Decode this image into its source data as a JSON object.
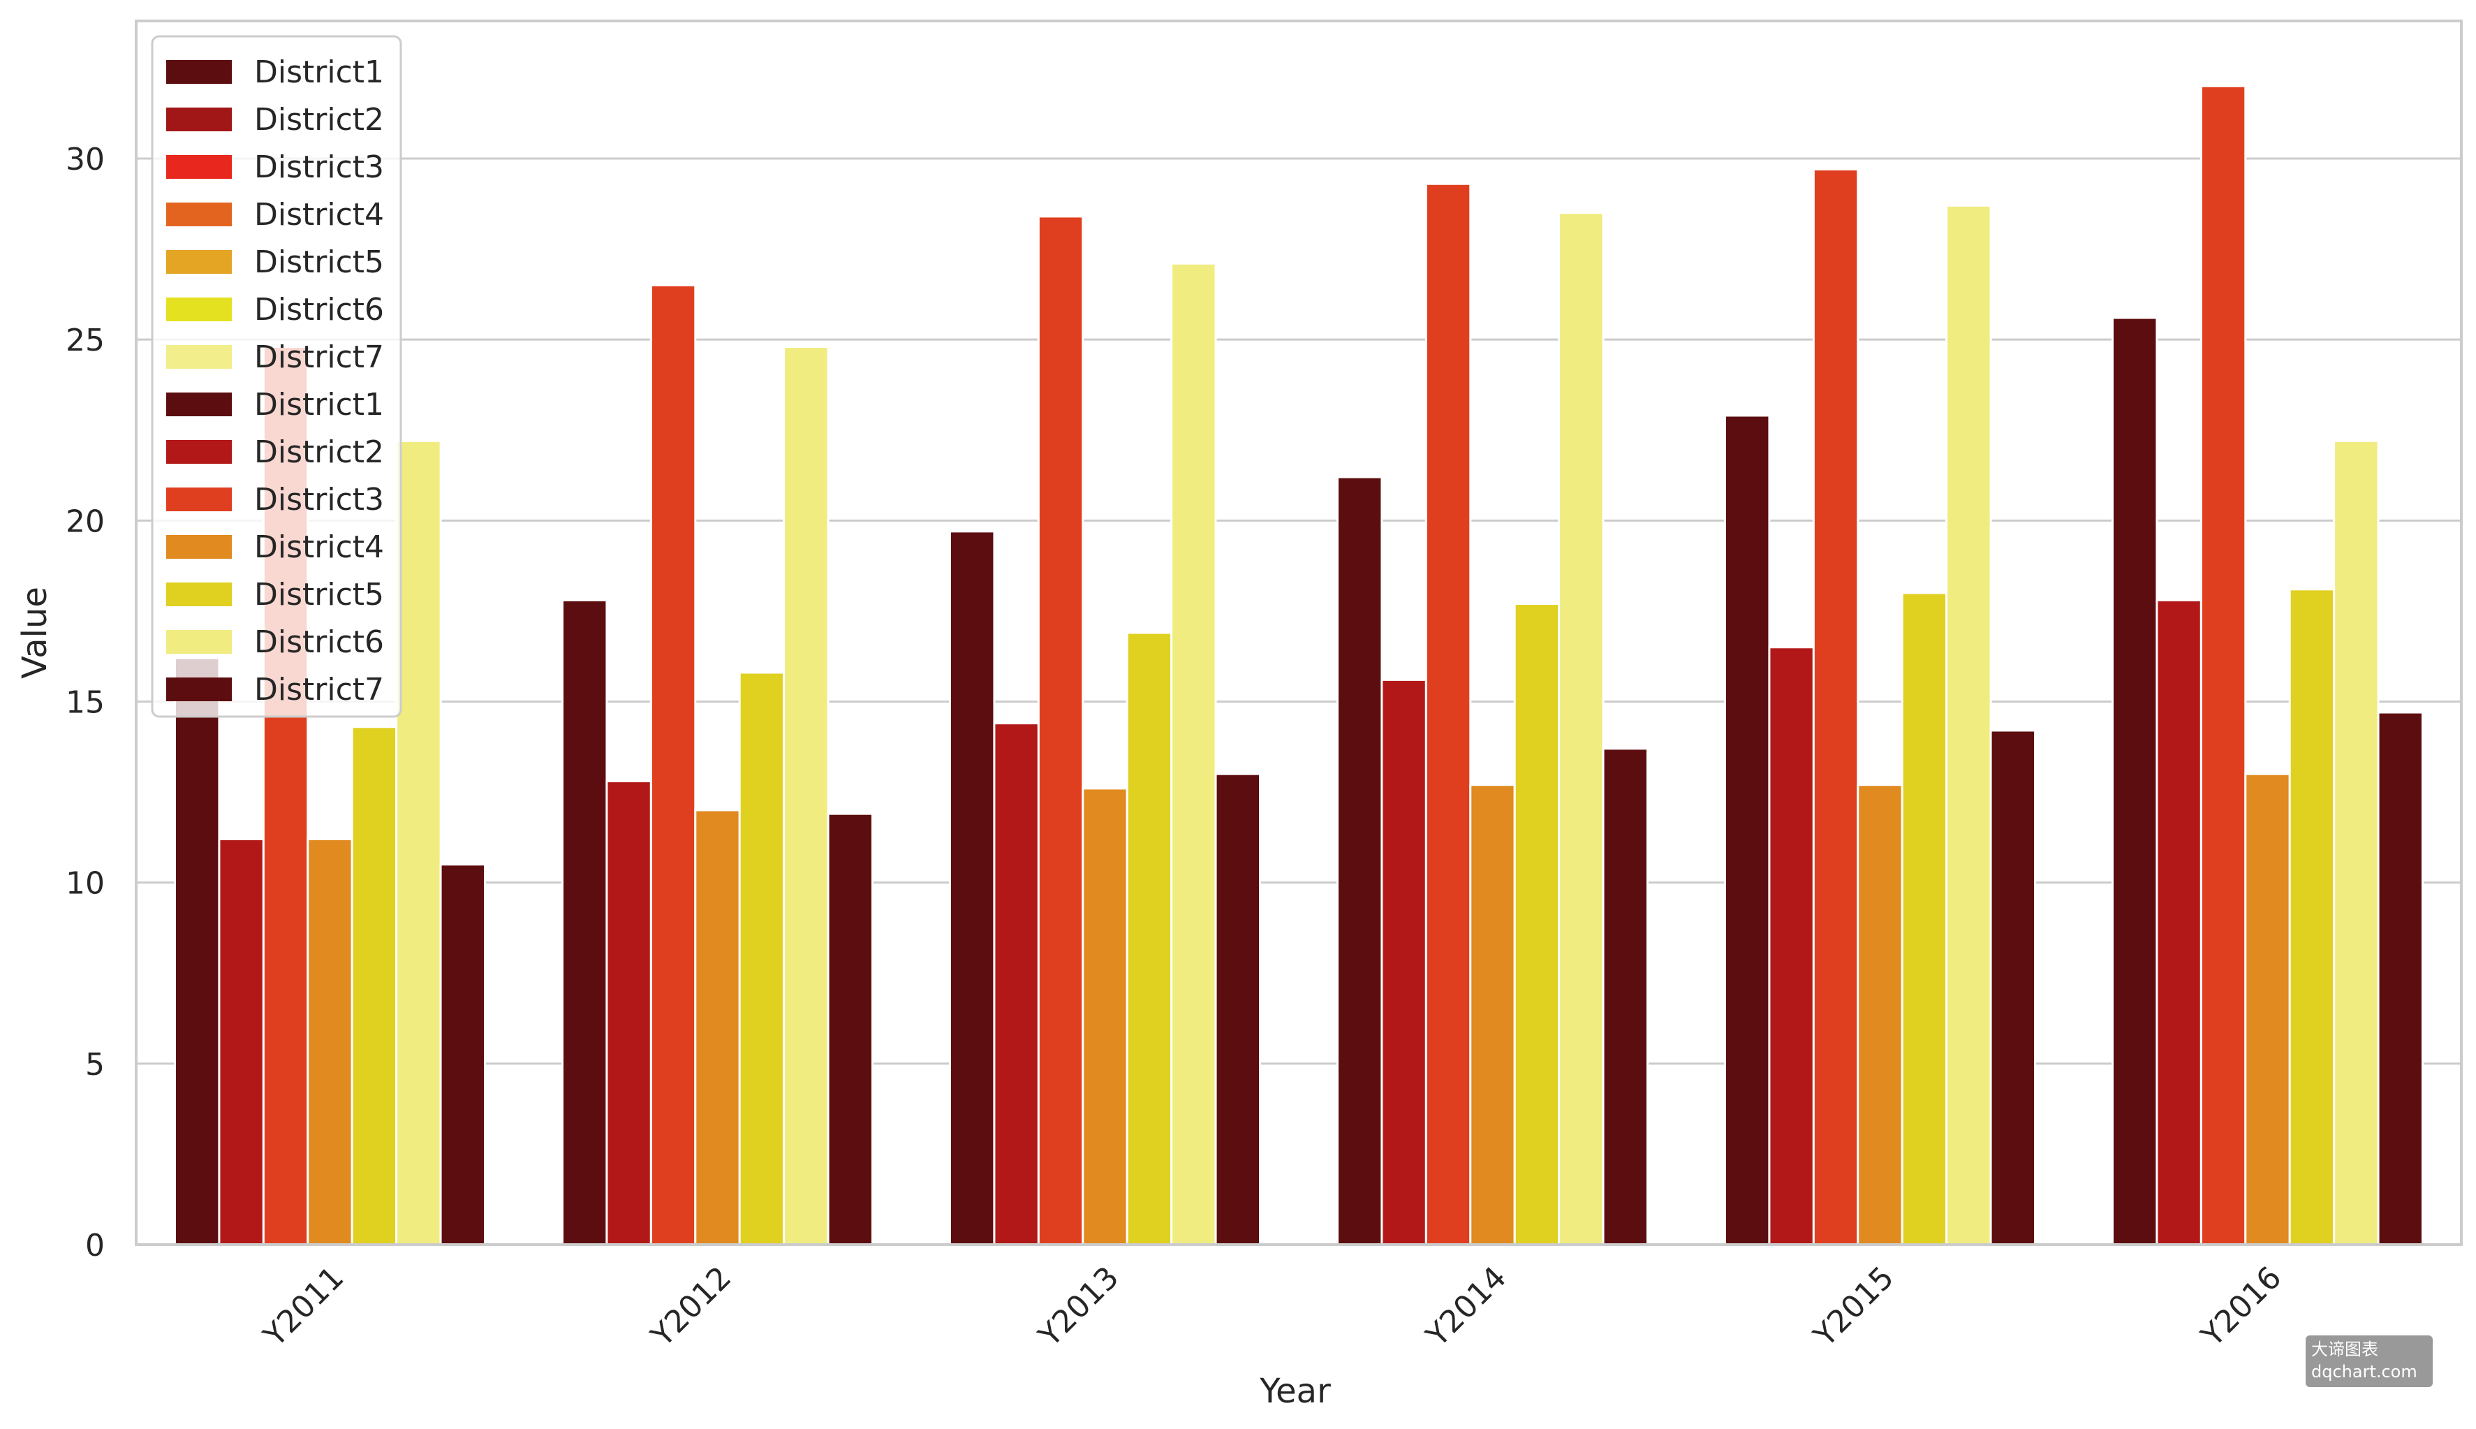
{
  "chart_data": {
    "type": "bar",
    "xlabel": "Year",
    "ylabel": "Value",
    "ylim": [
      0,
      33.8
    ],
    "yticks": [
      0,
      5,
      10,
      15,
      20,
      25,
      30
    ],
    "grid": true,
    "legend_placement": "top-left",
    "categories": [
      "Y2011",
      "Y2012",
      "Y2013",
      "Y2014",
      "Y2015",
      "Y2016"
    ],
    "series": [
      {
        "name": "District1",
        "color": "#5c0d0f",
        "values": [
          16.2,
          17.8,
          19.7,
          21.2,
          22.9,
          25.6
        ]
      },
      {
        "name": "District2",
        "color": "#b21818",
        "values": [
          11.2,
          12.8,
          14.4,
          15.6,
          16.5,
          17.8
        ]
      },
      {
        "name": "District3",
        "color": "#e03f1f",
        "values": [
          24.8,
          26.5,
          28.4,
          29.3,
          29.7,
          32.0
        ]
      },
      {
        "name": "District4",
        "color": "#e08a20",
        "values": [
          11.2,
          12.0,
          12.6,
          12.7,
          12.7,
          13.0
        ]
      },
      {
        "name": "District5",
        "color": "#e0d020",
        "values": [
          14.3,
          15.8,
          16.9,
          17.7,
          18.0,
          18.1
        ]
      },
      {
        "name": "District6",
        "color": "#f0ec80",
        "values": [
          22.2,
          24.8,
          27.1,
          28.5,
          28.7,
          22.2
        ]
      },
      {
        "name": "District7",
        "color": "#5c0d0f",
        "values": [
          10.5,
          11.9,
          13.0,
          13.7,
          14.2,
          14.7
        ]
      }
    ],
    "legend": [
      {
        "label": "District1",
        "color": "#5c0d0f"
      },
      {
        "label": "District2",
        "color": "#a11717"
      },
      {
        "label": "District3",
        "color": "#e8281e"
      },
      {
        "label": "District4",
        "color": "#e2641e"
      },
      {
        "label": "District5",
        "color": "#e4a424"
      },
      {
        "label": "District6",
        "color": "#e4e220"
      },
      {
        "label": "District7",
        "color": "#f2ee8c"
      },
      {
        "label": "District1",
        "color": "#5c0d0f"
      },
      {
        "label": "District2",
        "color": "#b21818"
      },
      {
        "label": "District3",
        "color": "#e03f1f"
      },
      {
        "label": "District4",
        "color": "#e08a20"
      },
      {
        "label": "District5",
        "color": "#e0d020"
      },
      {
        "label": "District6",
        "color": "#f0ec80"
      },
      {
        "label": "District7",
        "color": "#5c0d0f"
      }
    ]
  },
  "watermark": {
    "line1": "大谛图表",
    "line2": "dqchart.com"
  }
}
